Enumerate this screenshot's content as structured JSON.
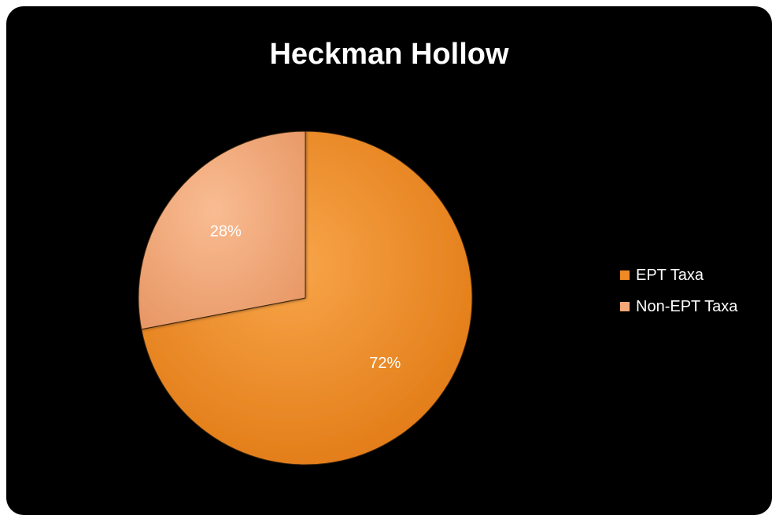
{
  "chart_data": {
    "type": "pie",
    "title": "Heckman Hollow",
    "categories": [
      "EPT Taxa",
      "Non-EPT Taxa"
    ],
    "values": [
      72,
      28
    ],
    "value_labels": [
      "72%",
      "28%"
    ],
    "colors": [
      "#F08A24",
      "#F5A877"
    ],
    "legend_position": "right"
  }
}
